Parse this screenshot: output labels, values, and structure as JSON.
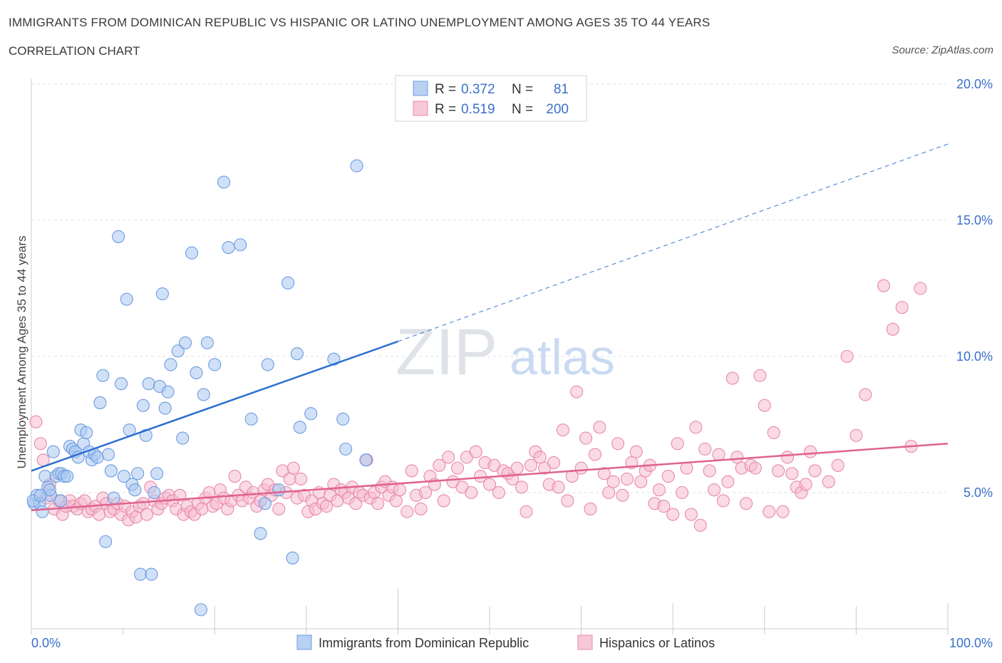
{
  "header": {
    "title": "IMMIGRANTS FROM DOMINICAN REPUBLIC VS HISPANIC OR LATINO UNEMPLOYMENT AMONG AGES 35 TO 44 YEARS",
    "subtitle": "CORRELATION CHART",
    "source": "Source: ZipAtlas.com"
  },
  "colors": {
    "blue_fill": "#a9c8f0",
    "blue_stroke": "#6d9be0",
    "blue_line": "#2d6fd1",
    "pink_fill": "#f5bcd0",
    "pink_stroke": "#e88aab",
    "pink_line": "#e0628d",
    "axis_text": "#3a70c9",
    "grid": "#dde1e8"
  },
  "chart_data": {
    "type": "scatter",
    "xlabel": "",
    "ylabel": "Unemployment Among Ages 35 to 44 years",
    "x_tick_labels": [
      "0.0%",
      "100.0%"
    ],
    "y_tick_labels": [
      "5.0%",
      "10.0%",
      "15.0%",
      "20.0%"
    ],
    "y_ticks": [
      5,
      10,
      15,
      20
    ],
    "xlim": [
      0,
      100
    ],
    "ylim": [
      0,
      20.5
    ],
    "grid": true,
    "legend_position": "top-center",
    "watermark": "ZIPatlas",
    "stats": [
      {
        "r_label": "R = ",
        "r_value": "0.372",
        "n_label": "N = ",
        "n_value": "81"
      },
      {
        "r_label": "R = ",
        "r_value": "0.519",
        "n_label": "N = ",
        "n_value": "200"
      }
    ],
    "series": [
      {
        "name": "Immigrants from Dominican Republic",
        "color": "blue",
        "trend": {
          "x": [
            0,
            40
          ],
          "y": [
            5.8,
            10.55
          ],
          "dash_to": [
            100,
            17.8
          ]
        },
        "points": [
          [
            0.3,
            4.6
          ],
          [
            0.6,
            4.9
          ],
          [
            0.9,
            4.6
          ],
          [
            1.2,
            4.3
          ],
          [
            1.5,
            5.6
          ],
          [
            1.8,
            5.2
          ],
          [
            2.1,
            4.9
          ],
          [
            2.4,
            6.5
          ],
          [
            2.7,
            5.6
          ],
          [
            3.0,
            5.7
          ],
          [
            3.3,
            5.7
          ],
          [
            3.6,
            5.6
          ],
          [
            3.9,
            5.6
          ],
          [
            4.2,
            6.7
          ],
          [
            4.5,
            6.6
          ],
          [
            4.8,
            6.5
          ],
          [
            5.1,
            6.3
          ],
          [
            5.4,
            7.3
          ],
          [
            5.7,
            6.8
          ],
          [
            6.0,
            7.2
          ],
          [
            6.3,
            6.5
          ],
          [
            6.6,
            6.2
          ],
          [
            6.9,
            6.4
          ],
          [
            7.2,
            6.3
          ],
          [
            7.5,
            8.3
          ],
          [
            7.8,
            9.3
          ],
          [
            8.1,
            3.2
          ],
          [
            8.4,
            6.4
          ],
          [
            8.7,
            5.8
          ],
          [
            9.0,
            4.8
          ],
          [
            9.5,
            14.4
          ],
          [
            9.8,
            9.0
          ],
          [
            10.1,
            5.6
          ],
          [
            10.4,
            12.1
          ],
          [
            10.7,
            7.3
          ],
          [
            11.0,
            5.3
          ],
          [
            11.3,
            5.1
          ],
          [
            11.6,
            5.7
          ],
          [
            11.9,
            2.0
          ],
          [
            12.2,
            8.2
          ],
          [
            12.5,
            7.1
          ],
          [
            12.8,
            9.0
          ],
          [
            13.1,
            2.0
          ],
          [
            13.4,
            5.0
          ],
          [
            13.7,
            5.7
          ],
          [
            14.0,
            8.9
          ],
          [
            14.3,
            12.3
          ],
          [
            14.6,
            8.1
          ],
          [
            14.9,
            8.7
          ],
          [
            15.2,
            9.7
          ],
          [
            16.0,
            10.2
          ],
          [
            16.5,
            7.0
          ],
          [
            16.8,
            10.5
          ],
          [
            17.5,
            13.8
          ],
          [
            18.0,
            9.4
          ],
          [
            18.5,
            0.7
          ],
          [
            18.8,
            8.6
          ],
          [
            19.2,
            10.5
          ],
          [
            20.0,
            9.7
          ],
          [
            21.0,
            16.4
          ],
          [
            21.5,
            14.0
          ],
          [
            22.8,
            14.1
          ],
          [
            24.0,
            7.7
          ],
          [
            25.0,
            3.5
          ],
          [
            25.5,
            4.6
          ],
          [
            25.8,
            9.7
          ],
          [
            27.0,
            5.1
          ],
          [
            28.0,
            12.7
          ],
          [
            28.5,
            2.6
          ],
          [
            29.0,
            10.1
          ],
          [
            29.3,
            7.4
          ],
          [
            30.5,
            7.9
          ],
          [
            33.0,
            9.9
          ],
          [
            34.0,
            7.7
          ],
          [
            34.3,
            6.6
          ],
          [
            35.5,
            17.0
          ],
          [
            36.5,
            6.2
          ],
          [
            0.2,
            4.7
          ],
          [
            1.0,
            4.9
          ],
          [
            2.0,
            5.1
          ],
          [
            3.2,
            4.7
          ]
        ]
      },
      {
        "name": "Hispanics or Latinos",
        "color": "pink",
        "trend": {
          "x": [
            0,
            100
          ],
          "y": [
            4.35,
            6.8
          ]
        },
        "points": [
          [
            0.5,
            7.6
          ],
          [
            1.0,
            6.8
          ],
          [
            1.3,
            6.2
          ],
          [
            1.6,
            4.8
          ],
          [
            2.0,
            5.3
          ],
          [
            2.5,
            4.4
          ],
          [
            3.0,
            4.7
          ],
          [
            3.4,
            4.2
          ],
          [
            3.8,
            4.5
          ],
          [
            4.2,
            4.7
          ],
          [
            4.6,
            4.5
          ],
          [
            5.0,
            4.4
          ],
          [
            5.4,
            4.6
          ],
          [
            5.8,
            4.7
          ],
          [
            6.2,
            4.3
          ],
          [
            6.6,
            4.4
          ],
          [
            7.0,
            4.5
          ],
          [
            7.4,
            4.2
          ],
          [
            7.8,
            4.8
          ],
          [
            8.2,
            4.6
          ],
          [
            8.6,
            4.3
          ],
          [
            9.0,
            4.4
          ],
          [
            9.4,
            4.6
          ],
          [
            9.8,
            4.2
          ],
          [
            10.2,
            4.5
          ],
          [
            10.6,
            4.0
          ],
          [
            11.0,
            4.3
          ],
          [
            11.4,
            4.1
          ],
          [
            11.8,
            4.5
          ],
          [
            12.2,
            4.6
          ],
          [
            12.6,
            4.2
          ],
          [
            13.0,
            5.2
          ],
          [
            13.4,
            4.7
          ],
          [
            13.8,
            4.4
          ],
          [
            14.2,
            4.6
          ],
          [
            14.6,
            4.8
          ],
          [
            15.0,
            4.9
          ],
          [
            15.4,
            4.7
          ],
          [
            15.8,
            4.4
          ],
          [
            16.2,
            4.9
          ],
          [
            16.6,
            4.2
          ],
          [
            17.0,
            4.5
          ],
          [
            17.4,
            4.3
          ],
          [
            17.8,
            4.2
          ],
          [
            18.2,
            4.6
          ],
          [
            18.6,
            4.4
          ],
          [
            19.0,
            4.8
          ],
          [
            19.4,
            5.0
          ],
          [
            19.8,
            4.5
          ],
          [
            20.2,
            4.6
          ],
          [
            20.6,
            5.1
          ],
          [
            21.0,
            4.8
          ],
          [
            21.4,
            4.4
          ],
          [
            21.8,
            4.7
          ],
          [
            22.2,
            5.6
          ],
          [
            22.6,
            4.9
          ],
          [
            23.0,
            4.7
          ],
          [
            23.4,
            5.2
          ],
          [
            23.8,
            4.8
          ],
          [
            24.2,
            5.0
          ],
          [
            24.6,
            4.5
          ],
          [
            25.0,
            4.7
          ],
          [
            25.4,
            5.1
          ],
          [
            25.8,
            5.3
          ],
          [
            26.2,
            4.9
          ],
          [
            26.6,
            5.1
          ],
          [
            27.0,
            4.4
          ],
          [
            27.4,
            5.8
          ],
          [
            27.8,
            5.0
          ],
          [
            28.2,
            5.5
          ],
          [
            28.6,
            5.9
          ],
          [
            29.0,
            4.8
          ],
          [
            29.4,
            5.5
          ],
          [
            29.8,
            4.9
          ],
          [
            30.2,
            4.3
          ],
          [
            30.6,
            4.7
          ],
          [
            31.0,
            4.4
          ],
          [
            31.4,
            5.0
          ],
          [
            31.8,
            4.6
          ],
          [
            32.2,
            4.5
          ],
          [
            32.6,
            4.9
          ],
          [
            33.0,
            5.3
          ],
          [
            33.4,
            4.7
          ],
          [
            33.8,
            5.1
          ],
          [
            34.2,
            5.0
          ],
          [
            34.6,
            4.8
          ],
          [
            35.0,
            5.2
          ],
          [
            35.4,
            4.6
          ],
          [
            35.8,
            5.0
          ],
          [
            36.2,
            4.9
          ],
          [
            36.6,
            6.2
          ],
          [
            37.0,
            4.8
          ],
          [
            37.4,
            5.0
          ],
          [
            37.8,
            4.6
          ],
          [
            38.2,
            5.2
          ],
          [
            38.6,
            5.4
          ],
          [
            39.0,
            4.9
          ],
          [
            39.4,
            5.2
          ],
          [
            39.8,
            4.7
          ],
          [
            40.2,
            5.1
          ],
          [
            41.0,
            4.3
          ],
          [
            41.5,
            5.8
          ],
          [
            42.0,
            4.9
          ],
          [
            42.5,
            4.4
          ],
          [
            43.0,
            5.0
          ],
          [
            43.5,
            5.6
          ],
          [
            44.0,
            5.3
          ],
          [
            44.5,
            6.0
          ],
          [
            45.0,
            4.7
          ],
          [
            45.5,
            6.3
          ],
          [
            46.0,
            5.4
          ],
          [
            46.5,
            5.9
          ],
          [
            47.0,
            5.2
          ],
          [
            47.5,
            6.3
          ],
          [
            48.0,
            5.0
          ],
          [
            48.5,
            6.5
          ],
          [
            49.0,
            5.6
          ],
          [
            49.5,
            6.1
          ],
          [
            50.0,
            5.3
          ],
          [
            50.5,
            6.0
          ],
          [
            51.0,
            5.0
          ],
          [
            51.5,
            5.8
          ],
          [
            52.0,
            5.7
          ],
          [
            52.5,
            5.5
          ],
          [
            53.0,
            5.9
          ],
          [
            53.5,
            5.2
          ],
          [
            54.0,
            4.3
          ],
          [
            54.5,
            6.0
          ],
          [
            55.0,
            6.5
          ],
          [
            55.5,
            6.3
          ],
          [
            56.0,
            5.9
          ],
          [
            56.5,
            5.3
          ],
          [
            57.0,
            6.1
          ],
          [
            57.5,
            5.2
          ],
          [
            58.0,
            7.3
          ],
          [
            58.5,
            4.7
          ],
          [
            59.0,
            5.6
          ],
          [
            59.5,
            8.7
          ],
          [
            60.0,
            5.9
          ],
          [
            60.5,
            7.0
          ],
          [
            61.0,
            4.4
          ],
          [
            61.5,
            6.4
          ],
          [
            62.0,
            7.4
          ],
          [
            62.5,
            5.7
          ],
          [
            63.0,
            5.0
          ],
          [
            63.5,
            5.4
          ],
          [
            64.0,
            6.8
          ],
          [
            64.5,
            4.9
          ],
          [
            65.0,
            5.5
          ],
          [
            65.5,
            6.1
          ],
          [
            66.0,
            6.5
          ],
          [
            66.5,
            5.4
          ],
          [
            67.0,
            5.8
          ],
          [
            67.5,
            6.0
          ],
          [
            68.0,
            4.6
          ],
          [
            68.5,
            5.1
          ],
          [
            69.0,
            4.5
          ],
          [
            69.5,
            5.6
          ],
          [
            70.0,
            4.2
          ],
          [
            70.5,
            6.8
          ],
          [
            71.0,
            5.0
          ],
          [
            71.5,
            5.9
          ],
          [
            72.0,
            4.2
          ],
          [
            72.5,
            7.4
          ],
          [
            73.0,
            3.8
          ],
          [
            73.5,
            6.6
          ],
          [
            74.0,
            5.8
          ],
          [
            74.5,
            5.1
          ],
          [
            75.0,
            6.4
          ],
          [
            75.5,
            4.7
          ],
          [
            76.0,
            5.4
          ],
          [
            76.5,
            9.2
          ],
          [
            77.0,
            6.3
          ],
          [
            77.5,
            5.9
          ],
          [
            78.0,
            4.6
          ],
          [
            78.5,
            6.0
          ],
          [
            79.0,
            5.9
          ],
          [
            79.5,
            9.3
          ],
          [
            80.0,
            8.2
          ],
          [
            80.5,
            4.3
          ],
          [
            81.0,
            7.2
          ],
          [
            81.5,
            5.8
          ],
          [
            82.0,
            4.3
          ],
          [
            82.5,
            6.3
          ],
          [
            83.0,
            5.7
          ],
          [
            83.5,
            5.2
          ],
          [
            84.0,
            5.0
          ],
          [
            84.5,
            5.3
          ],
          [
            85.0,
            6.5
          ],
          [
            85.5,
            5.8
          ],
          [
            87.0,
            5.4
          ],
          [
            88.0,
            6.0
          ],
          [
            89.0,
            10.0
          ],
          [
            90.0,
            7.1
          ],
          [
            91.0,
            8.6
          ],
          [
            93.0,
            12.6
          ],
          [
            94.0,
            11.0
          ],
          [
            95.0,
            11.8
          ],
          [
            96.0,
            6.7
          ],
          [
            97.0,
            12.5
          ]
        ]
      }
    ]
  }
}
